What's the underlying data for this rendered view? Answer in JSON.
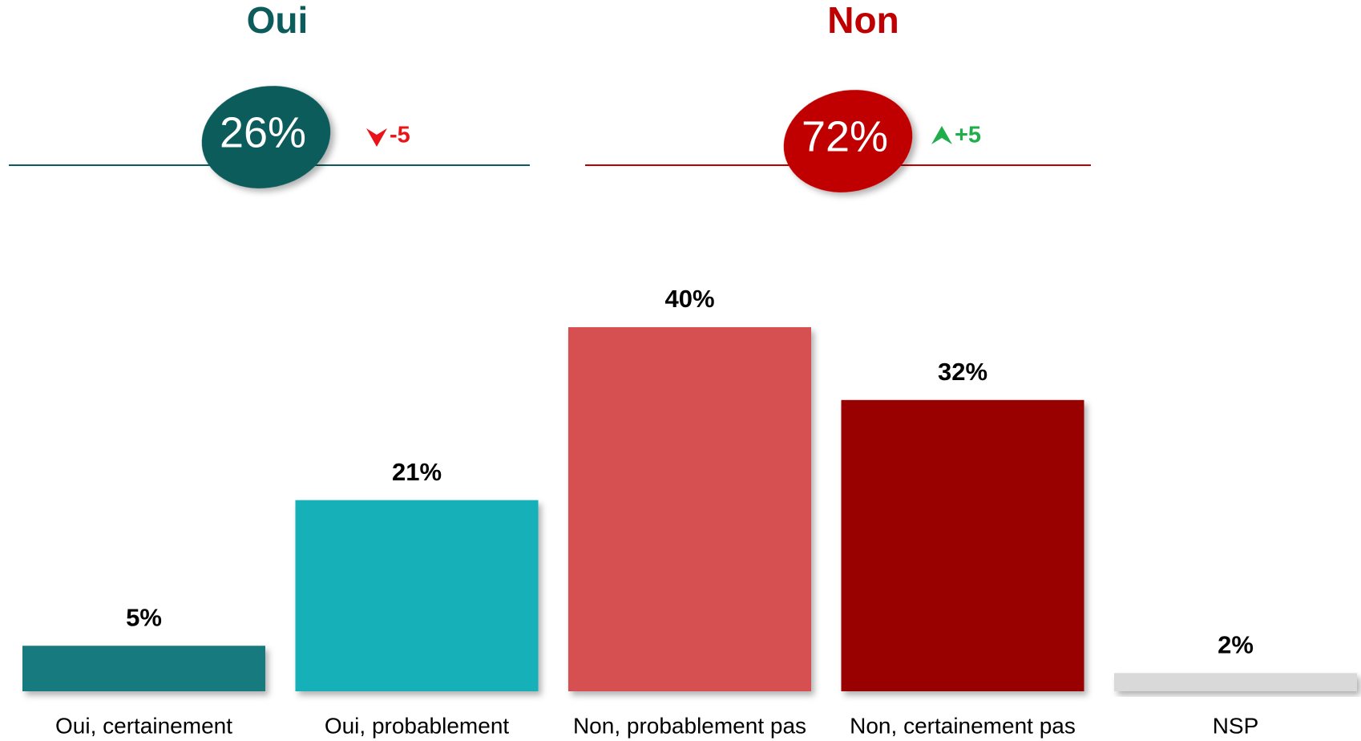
{
  "summary": {
    "groups": [
      {
        "title": "Oui",
        "color": "#0d5c5c",
        "value": 26,
        "value_label": "26%",
        "change": -5,
        "change_label": "-5",
        "change_color": "#e8141a"
      },
      {
        "title": "Non",
        "color": "#c00000",
        "value": 72,
        "value_label": "72%",
        "change": 5,
        "change_label": "+5",
        "change_color": "#1fae4b"
      }
    ]
  },
  "chart_data": {
    "type": "bar",
    "categories": [
      "Oui, certainement",
      "Oui, probablement",
      "Non, probablement pas",
      "Non, certainement pas",
      "NSP"
    ],
    "values": [
      5,
      21,
      40,
      32,
      2
    ],
    "value_labels": [
      "5%",
      "21%",
      "40%",
      "32%",
      "2%"
    ],
    "colors": [
      "#137a7f",
      "#13b0b8",
      "#d64f51",
      "#990000",
      "#d9d9d9"
    ]
  }
}
